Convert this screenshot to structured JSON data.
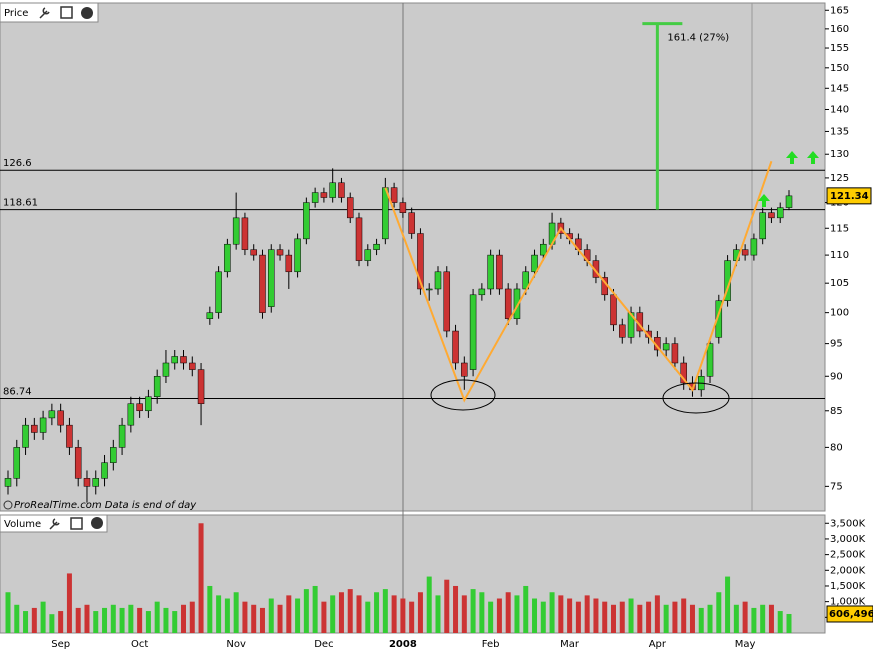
{
  "chart_data": [
    {
      "type": "candlestick",
      "title": "Price",
      "log_scale": true,
      "colors": {
        "up": "#33cc33",
        "down": "#cc3333"
      },
      "opens": [
        75,
        76,
        80,
        83,
        82,
        84,
        85,
        83,
        80,
        76,
        75,
        76,
        78,
        80,
        83,
        86,
        85,
        87,
        90,
        92,
        93,
        92,
        91,
        99,
        100,
        107,
        112,
        117,
        111,
        110,
        101,
        111,
        110,
        107,
        113,
        120,
        122,
        121,
        124,
        121,
        117,
        109,
        111,
        113,
        123,
        120,
        118,
        114,
        104,
        104,
        107,
        97,
        92,
        91,
        103,
        104,
        110,
        104,
        99,
        104,
        107,
        110,
        112,
        116,
        114,
        113,
        111,
        109,
        106,
        103,
        98,
        96,
        100,
        97,
        96,
        94,
        95,
        92,
        89,
        88,
        90,
        96,
        102,
        109,
        111,
        110,
        113,
        118,
        117,
        119
      ],
      "highs": [
        77,
        81,
        84,
        84,
        85,
        86,
        86,
        84,
        81,
        77,
        77,
        79,
        81,
        84,
        87,
        87,
        88,
        91,
        94,
        94,
        94,
        93,
        92,
        101,
        108,
        113,
        122,
        118,
        112,
        111,
        112,
        112,
        111,
        114,
        121,
        123,
        123,
        127,
        125,
        122,
        118,
        112,
        113,
        125,
        124,
        121,
        119,
        115,
        105,
        108,
        108,
        98,
        93,
        104,
        105,
        111,
        111,
        105,
        105,
        108,
        111,
        113,
        118,
        117,
        115,
        114,
        112,
        110,
        107,
        104,
        99,
        101,
        101,
        98,
        97,
        96,
        96,
        93,
        90,
        91,
        96,
        103,
        110,
        112,
        112,
        114,
        119,
        119,
        120,
        122.5
      ],
      "lows": [
        74,
        75,
        79,
        81,
        81,
        83,
        82,
        79,
        75,
        73,
        74,
        75,
        77,
        79,
        82,
        84,
        84,
        86,
        89,
        91,
        91,
        90,
        83,
        98,
        99,
        106,
        111,
        110,
        109,
        99,
        100,
        109,
        104,
        106,
        112,
        119,
        120,
        120,
        120,
        116,
        108,
        108,
        110,
        112,
        119,
        117,
        113,
        103,
        102,
        103,
        96,
        91,
        88,
        90,
        102,
        103,
        103,
        98,
        98,
        103,
        106,
        109,
        111,
        113,
        112,
        110,
        108,
        105,
        102,
        97,
        95,
        95,
        96,
        95,
        93,
        93,
        91,
        88,
        87,
        87,
        89,
        95,
        101,
        108,
        109,
        109,
        112,
        116,
        116,
        118.5
      ],
      "closes": [
        76,
        80,
        83,
        82,
        84,
        85,
        83,
        80,
        76,
        75,
        76,
        78,
        80,
        83,
        86,
        85,
        87,
        90,
        92,
        93,
        92,
        91,
        86,
        100,
        107,
        112,
        117,
        111,
        110,
        100,
        111,
        110,
        107,
        113,
        120,
        122,
        121,
        124,
        121,
        117,
        109,
        111,
        112,
        123,
        120,
        118,
        114,
        104,
        104,
        107,
        97,
        92,
        90,
        103,
        104,
        110,
        104,
        99,
        104,
        107,
        110,
        112,
        116,
        114,
        113,
        111,
        109,
        106,
        103,
        98,
        96,
        100,
        97,
        96,
        94,
        95,
        92,
        89,
        88,
        90,
        95,
        102,
        109,
        111,
        110,
        113,
        118,
        117,
        119,
        121.34
      ],
      "ylim": [
        72,
        167
      ],
      "yticks": [
        75,
        80,
        85,
        90,
        95,
        100,
        105,
        110,
        115,
        120,
        125,
        130,
        135,
        140,
        145,
        150,
        155,
        160,
        165
      ],
      "levels": [
        126.6,
        118.61,
        86.74
      ],
      "target": {
        "index": 74,
        "from": 118.61,
        "to": 161.4,
        "label": "161.4 (27%)",
        "color": "#44cc44"
      },
      "pattern": {
        "color": "#ffaa33",
        "points": [
          [
            43,
            123
          ],
          [
            52,
            86.5
          ],
          [
            63,
            115
          ],
          [
            78,
            88
          ],
          [
            87,
            128.5
          ]
        ]
      },
      "note": "ProRealTime.com Data is end of day"
    },
    {
      "type": "bar",
      "title": "Volume",
      "categories": [
        null,
        null,
        null,
        null,
        null,
        null,
        "Sep",
        null,
        null,
        null,
        null,
        null,
        null,
        null,
        null,
        "Oct",
        null,
        null,
        null,
        null,
        null,
        null,
        null,
        null,
        null,
        null,
        "Nov",
        null,
        null,
        null,
        null,
        null,
        null,
        null,
        null,
        null,
        "Dec",
        null,
        null,
        null,
        null,
        null,
        null,
        null,
        null,
        "2008",
        null,
        null,
        null,
        null,
        null,
        null,
        null,
        null,
        null,
        "Feb",
        null,
        null,
        null,
        null,
        null,
        null,
        null,
        null,
        "Mar",
        null,
        null,
        null,
        null,
        null,
        null,
        null,
        null,
        null,
        "Apr",
        null,
        null,
        null,
        null,
        null,
        null,
        null,
        null,
        null,
        "May",
        null,
        null,
        null,
        null,
        null
      ],
      "values": [
        1300,
        900,
        700,
        800,
        1000,
        600,
        700,
        1900,
        800,
        900,
        700,
        800,
        900,
        800,
        900,
        800,
        700,
        1000,
        800,
        700,
        900,
        1000,
        3500,
        1500,
        1200,
        1100,
        1300,
        1000,
        900,
        800,
        1100,
        900,
        1200,
        1100,
        1400,
        1500,
        1000,
        1200,
        1300,
        1400,
        1200,
        1000,
        1300,
        1400,
        1200,
        1100,
        1000,
        1300,
        1800,
        1200,
        1700,
        1500,
        1200,
        1400,
        1300,
        1000,
        1100,
        1300,
        1200,
        1500,
        1100,
        1000,
        1300,
        1200,
        1100,
        1000,
        1200,
        1100,
        1000,
        900,
        1000,
        1100,
        900,
        1000,
        1200,
        900,
        1000,
        1100,
        900,
        800,
        900,
        1300,
        1800,
        900,
        1000,
        800,
        900,
        900,
        700,
        606.496
      ],
      "last_label": "606,496",
      "ylim": [
        0,
        3700
      ],
      "yticks": [
        {
          "value": 500,
          "label": "500K"
        },
        {
          "value": 1000,
          "label": "1,000K"
        },
        {
          "value": 1500,
          "label": "1,500K"
        },
        {
          "value": 2000,
          "label": "2,000K"
        },
        {
          "value": 2500,
          "label": "2,500K"
        },
        {
          "value": 3000,
          "label": "3,000K"
        },
        {
          "value": 3500,
          "label": "3,500K"
        }
      ]
    }
  ]
}
